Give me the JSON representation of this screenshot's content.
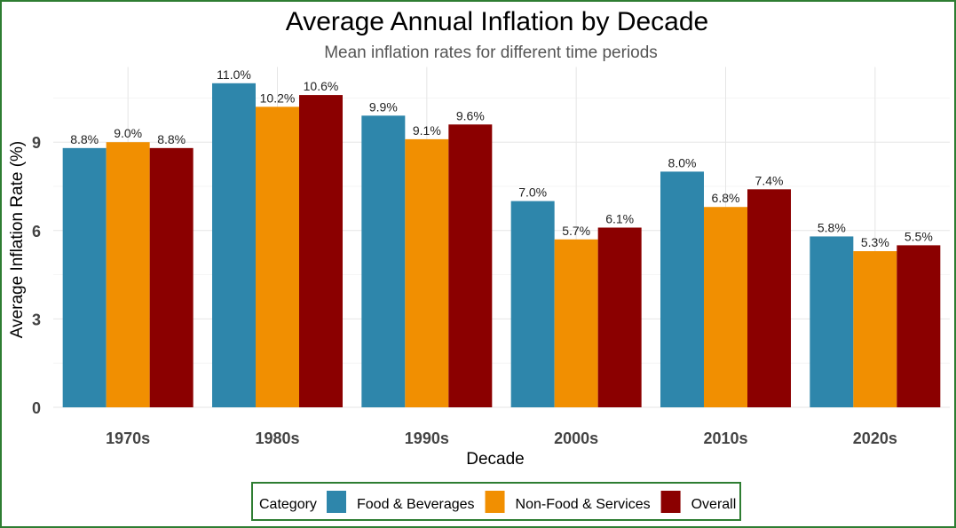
{
  "chart_data": {
    "type": "bar",
    "title": "Average Annual Inflation by Decade",
    "subtitle": "Mean inflation rates for different time periods",
    "xlabel": "Decade",
    "ylabel": "Average Inflation Rate (%)",
    "categories": [
      "1970s",
      "1980s",
      "1990s",
      "2000s",
      "2010s",
      "2020s"
    ],
    "series": [
      {
        "name": "Food & Beverages",
        "color": "#2E86AB",
        "values": [
          8.8,
          11.0,
          9.9,
          7.0,
          8.0,
          5.8
        ]
      },
      {
        "name": "Non-Food & Services",
        "color": "#F18F01",
        "values": [
          9.0,
          10.2,
          9.1,
          5.7,
          6.8,
          5.3
        ]
      },
      {
        "name": "Overall",
        "color": "#8B0000",
        "values": [
          8.8,
          10.6,
          9.6,
          6.1,
          7.4,
          5.5
        ]
      }
    ],
    "data_label_format": "%.1f%",
    "yticks": [
      0,
      3,
      6,
      9
    ],
    "ylim": [
      0,
      11.55
    ],
    "grid": true,
    "legend": {
      "title": "Category",
      "placement": "bottom"
    }
  }
}
